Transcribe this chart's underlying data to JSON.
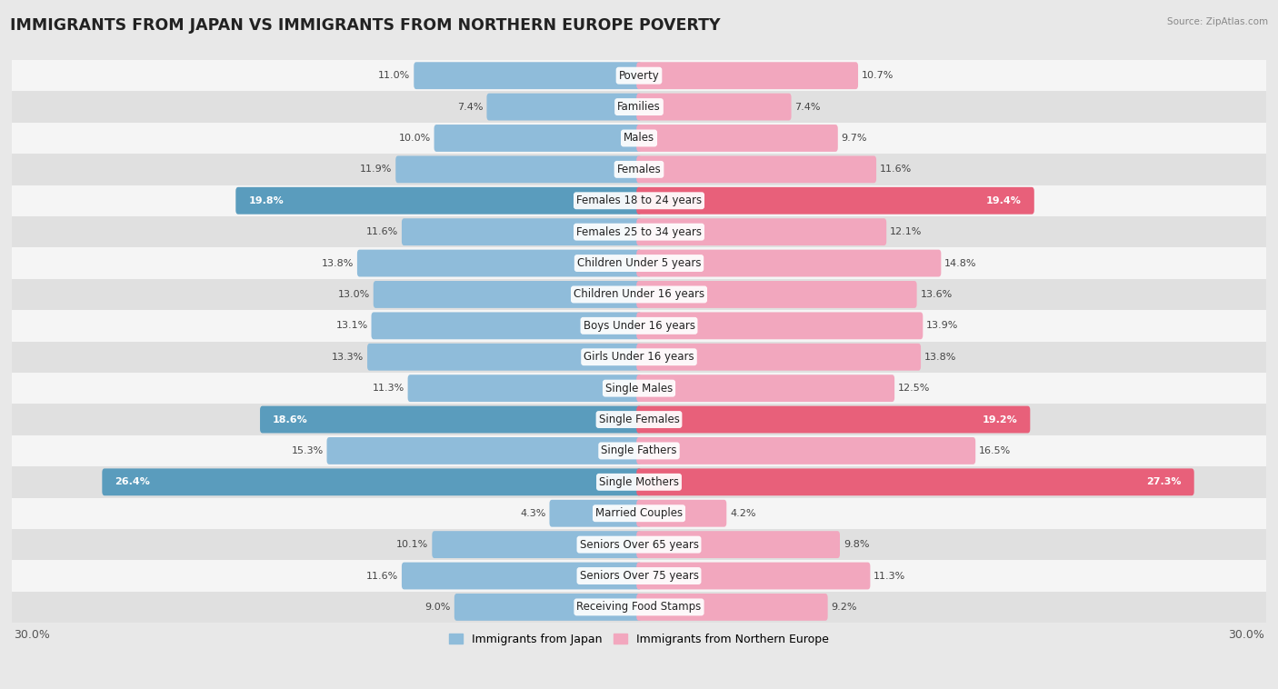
{
  "title": "IMMIGRANTS FROM JAPAN VS IMMIGRANTS FROM NORTHERN EUROPE POVERTY",
  "source": "Source: ZipAtlas.com",
  "categories": [
    "Poverty",
    "Families",
    "Males",
    "Females",
    "Females 18 to 24 years",
    "Females 25 to 34 years",
    "Children Under 5 years",
    "Children Under 16 years",
    "Boys Under 16 years",
    "Girls Under 16 years",
    "Single Males",
    "Single Females",
    "Single Fathers",
    "Single Mothers",
    "Married Couples",
    "Seniors Over 65 years",
    "Seniors Over 75 years",
    "Receiving Food Stamps"
  ],
  "japan_values": [
    11.0,
    7.4,
    10.0,
    11.9,
    19.8,
    11.6,
    13.8,
    13.0,
    13.1,
    13.3,
    11.3,
    18.6,
    15.3,
    26.4,
    4.3,
    10.1,
    11.6,
    9.0
  ],
  "northern_europe_values": [
    10.7,
    7.4,
    9.7,
    11.6,
    19.4,
    12.1,
    14.8,
    13.6,
    13.9,
    13.8,
    12.5,
    19.2,
    16.5,
    27.3,
    4.2,
    9.8,
    11.3,
    9.2
  ],
  "japan_color": "#8fbcda",
  "northern_europe_color": "#f2a7be",
  "japan_highlight_color": "#5a9cbd",
  "northern_europe_highlight_color": "#e8607a",
  "highlight_rows": [
    4,
    11,
    13
  ],
  "bar_height": 0.62,
  "xlim": 30.0,
  "bg_color": "#e8e8e8",
  "row_bg_even": "#f5f5f5",
  "row_bg_odd": "#e0e0e0",
  "title_fontsize": 12.5,
  "label_fontsize": 8.5,
  "value_fontsize": 8.0,
  "legend_japan": "Immigrants from Japan",
  "legend_northern_europe": "Immigrants from Northern Europe",
  "x_axis_label_left": "30.0%",
  "x_axis_label_right": "30.0%"
}
